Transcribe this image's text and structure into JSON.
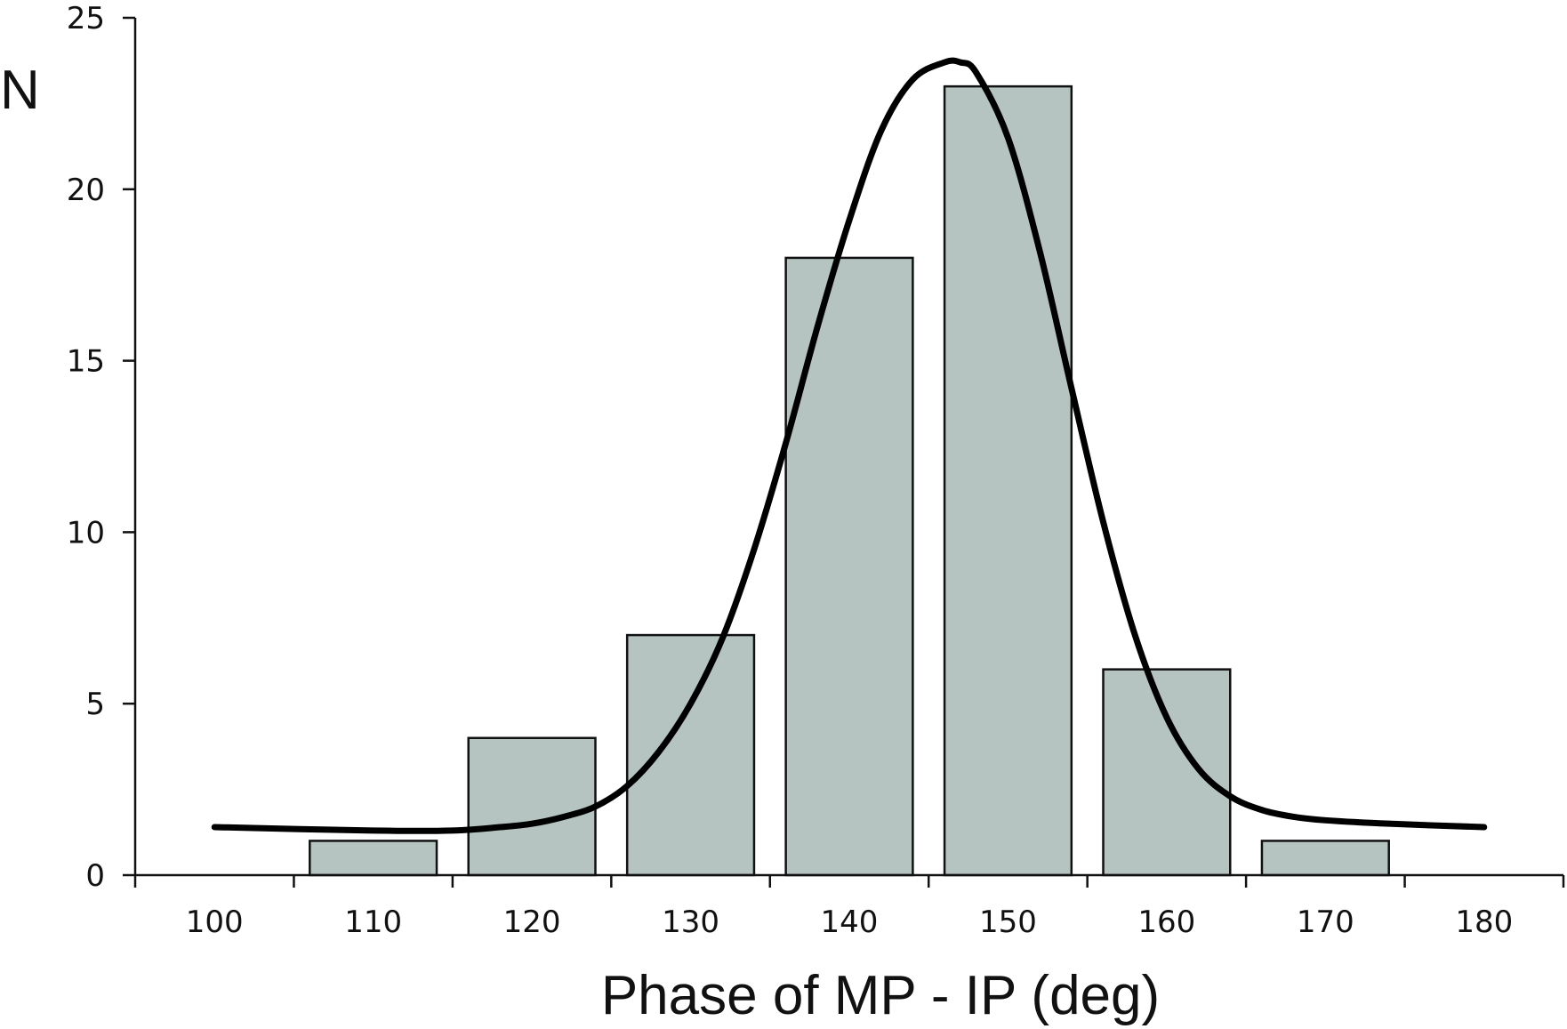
{
  "chart_data": {
    "type": "bar",
    "title": "",
    "xlabel": "Phase of MP - IP (deg)",
    "ylabel": "N",
    "x_tick_labels": [
      "100",
      "110",
      "120",
      "130",
      "140",
      "150",
      "160",
      "170",
      "180"
    ],
    "y_tick_labels": [
      "0",
      "5",
      "10",
      "15",
      "20",
      "25"
    ],
    "xlim": [
      95,
      185
    ],
    "ylim": [
      0,
      25
    ],
    "bin_width": 10,
    "categories": [
      "110",
      "120",
      "130",
      "140",
      "150",
      "160",
      "170"
    ],
    "bin_centers": [
      110,
      120,
      130,
      140,
      150,
      160,
      170
    ],
    "values": [
      1,
      4,
      7,
      18,
      23,
      6,
      1
    ],
    "fit_curve": {
      "x": [
        100,
        110,
        115,
        118,
        120,
        122,
        124,
        126,
        128,
        130,
        132,
        134,
        136,
        138,
        140,
        142,
        144,
        146,
        147,
        148,
        150,
        152,
        154,
        156,
        158,
        160,
        162,
        164,
        166,
        168,
        170,
        174,
        180
      ],
      "y": [
        1.4,
        1.3,
        1.3,
        1.4,
        1.5,
        1.7,
        2.0,
        2.6,
        3.6,
        5.0,
        6.9,
        9.5,
        12.6,
        16.0,
        19.1,
        21.7,
        23.2,
        23.7,
        23.7,
        23.4,
        21.5,
        18.2,
        14.2,
        10.3,
        7.0,
        4.6,
        3.1,
        2.3,
        1.9,
        1.7,
        1.6,
        1.5,
        1.4
      ]
    },
    "grid": false,
    "legend": "none",
    "colors": {
      "bar_fill": "#b5c4c1",
      "bar_stroke": "#111111",
      "curve": "#000000"
    }
  }
}
